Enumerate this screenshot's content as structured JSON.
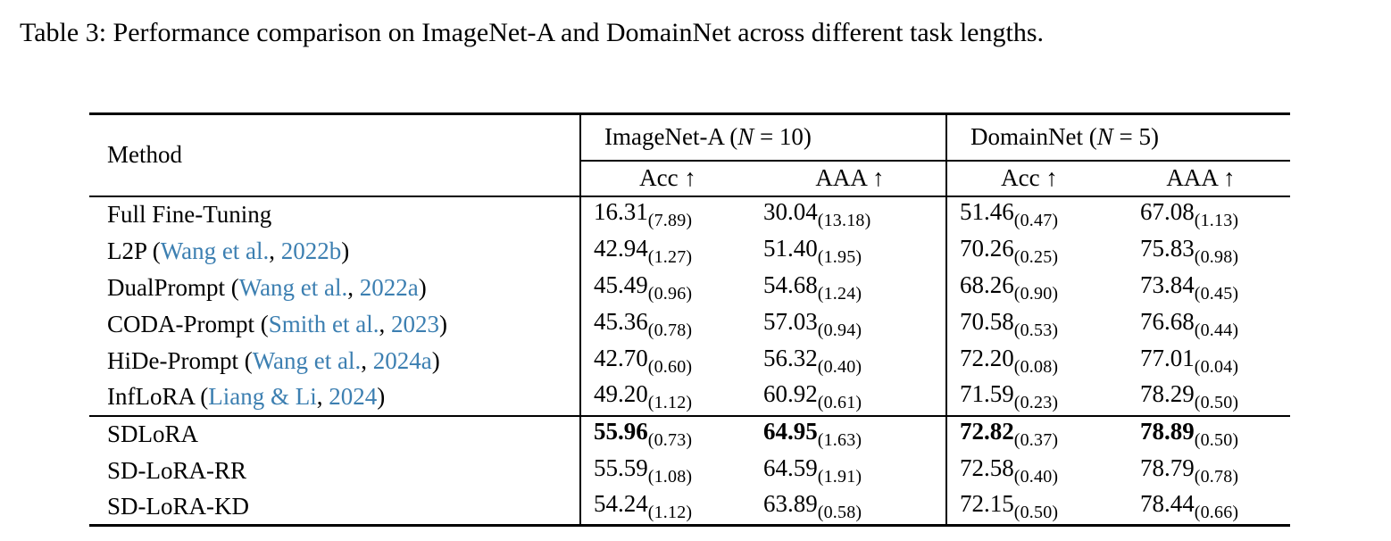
{
  "caption": {
    "text": "Table 3: Performance comparison on ImageNet-A and DomainNet across different task lengths."
  },
  "colors": {
    "link_blue": "#3c7fb1",
    "text": "#000000",
    "background": "#ffffff"
  },
  "table": {
    "method_header": "Method",
    "groups": [
      {
        "prefix": "ImageNet-A (",
        "var": "N",
        "suffix": " = 10)"
      },
      {
        "prefix": "DomainNet (",
        "var": "N",
        "suffix": " = 5)"
      }
    ],
    "sub_headers": [
      "Acc ↑",
      "AAA ↑",
      "Acc ↑",
      "AAA ↑"
    ],
    "rows": [
      {
        "method": "Full Fine-Tuning",
        "citation": null,
        "bold": false,
        "section_start": false,
        "values": [
          {
            "main": "16.31",
            "sub": "(7.89)"
          },
          {
            "main": "30.04",
            "sub": "(13.18)"
          },
          {
            "main": "51.46",
            "sub": "(0.47)"
          },
          {
            "main": "67.08",
            "sub": "(1.13)"
          }
        ]
      },
      {
        "method": "L2P",
        "citation": {
          "open": " (",
          "authors": "Wang et al.",
          "sep": ", ",
          "year": "2022b",
          "close": ")"
        },
        "bold": false,
        "section_start": false,
        "values": [
          {
            "main": "42.94",
            "sub": "(1.27)"
          },
          {
            "main": "51.40",
            "sub": "(1.95)"
          },
          {
            "main": "70.26",
            "sub": "(0.25)"
          },
          {
            "main": "75.83",
            "sub": "(0.98)"
          }
        ]
      },
      {
        "method": "DualPrompt",
        "citation": {
          "open": " (",
          "authors": "Wang et al.",
          "sep": ", ",
          "year": "2022a",
          "close": ")"
        },
        "bold": false,
        "section_start": false,
        "values": [
          {
            "main": "45.49",
            "sub": "(0.96)"
          },
          {
            "main": "54.68",
            "sub": "(1.24)"
          },
          {
            "main": "68.26",
            "sub": "(0.90)"
          },
          {
            "main": "73.84",
            "sub": "(0.45)"
          }
        ]
      },
      {
        "method": "CODA-Prompt",
        "citation": {
          "open": " (",
          "authors": "Smith et al.",
          "sep": ", ",
          "year": "2023",
          "close": ")"
        },
        "bold": false,
        "section_start": false,
        "values": [
          {
            "main": "45.36",
            "sub": "(0.78)"
          },
          {
            "main": "57.03",
            "sub": "(0.94)"
          },
          {
            "main": "70.58",
            "sub": "(0.53)"
          },
          {
            "main": "76.68",
            "sub": "(0.44)"
          }
        ]
      },
      {
        "method": "HiDe-Prompt",
        "citation": {
          "open": " (",
          "authors": "Wang et al.",
          "sep": ", ",
          "year": "2024a",
          "close": ")"
        },
        "bold": false,
        "section_start": false,
        "values": [
          {
            "main": "42.70",
            "sub": "(0.60)"
          },
          {
            "main": "56.32",
            "sub": "(0.40)"
          },
          {
            "main": "72.20",
            "sub": "(0.08)"
          },
          {
            "main": "77.01",
            "sub": "(0.04)"
          }
        ]
      },
      {
        "method": "InfLoRA",
        "citation": {
          "open": " (",
          "authors": "Liang & Li",
          "sep": ", ",
          "year": "2024",
          "close": ")"
        },
        "bold": false,
        "section_start": false,
        "values": [
          {
            "main": "49.20",
            "sub": "(1.12)"
          },
          {
            "main": "60.92",
            "sub": "(0.61)"
          },
          {
            "main": "71.59",
            "sub": "(0.23)"
          },
          {
            "main": "78.29",
            "sub": "(0.50)"
          }
        ]
      },
      {
        "method": "SDLoRA",
        "citation": null,
        "bold": true,
        "section_start": true,
        "values": [
          {
            "main": "55.96",
            "sub": "(0.73)"
          },
          {
            "main": "64.95",
            "sub": "(1.63)"
          },
          {
            "main": "72.82",
            "sub": "(0.37)"
          },
          {
            "main": "78.89",
            "sub": "(0.50)"
          }
        ]
      },
      {
        "method": "SD-LoRA-RR",
        "citation": null,
        "bold": false,
        "section_start": false,
        "values": [
          {
            "main": "55.59",
            "sub": "(1.08)"
          },
          {
            "main": "64.59",
            "sub": "(1.91)"
          },
          {
            "main": "72.58",
            "sub": "(0.40)"
          },
          {
            "main": "78.79",
            "sub": "(0.78)"
          }
        ]
      },
      {
        "method": "SD-LoRA-KD",
        "citation": null,
        "bold": false,
        "section_start": false,
        "values": [
          {
            "main": "54.24",
            "sub": "(1.12)"
          },
          {
            "main": "63.89",
            "sub": "(0.58)"
          },
          {
            "main": "72.15",
            "sub": "(0.50)"
          },
          {
            "main": "78.44",
            "sub": "(0.66)"
          }
        ]
      }
    ]
  }
}
